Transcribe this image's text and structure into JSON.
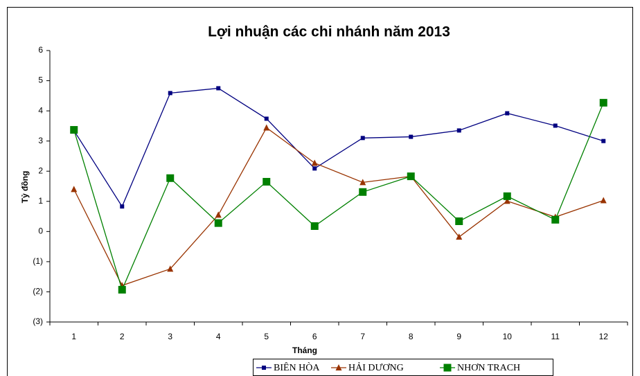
{
  "chart_data": {
    "type": "line",
    "title": "Lợi nhuận các chi nhánh năm 2013",
    "x_label": "Tháng",
    "y_label": "Tỷ đồng",
    "categories": [
      "1",
      "2",
      "3",
      "4",
      "5",
      "6",
      "7",
      "8",
      "9",
      "10",
      "11",
      "12"
    ],
    "series": [
      {
        "name": "BIÊN HÒA",
        "color": "#000080",
        "marker": "square",
        "values": [
          3.35,
          0.83,
          4.59,
          4.75,
          3.74,
          2.09,
          3.1,
          3.14,
          3.35,
          3.92,
          3.51,
          3.0
        ]
      },
      {
        "name": "HẢI DƯƠNG",
        "color": "#993300",
        "marker": "triangle",
        "values": [
          1.4,
          -1.79,
          -1.24,
          0.55,
          3.44,
          2.27,
          1.63,
          1.83,
          -0.18,
          1.01,
          0.48,
          1.03
        ]
      },
      {
        "name": "NHƠN TRACH",
        "color": "#008000",
        "marker": "big-square",
        "values": [
          3.37,
          -1.93,
          1.77,
          0.28,
          1.65,
          0.18,
          1.31,
          1.83,
          0.34,
          1.17,
          0.39,
          4.27
        ]
      }
    ],
    "ylim": [
      -3,
      6
    ],
    "yticks": [
      {
        "value": -3,
        "label": "(3)"
      },
      {
        "value": -2,
        "label": "(2)"
      },
      {
        "value": -1,
        "label": "(1)"
      },
      0,
      1,
      2,
      3,
      4,
      5,
      6
    ],
    "grid": false,
    "legend": "bottom"
  }
}
